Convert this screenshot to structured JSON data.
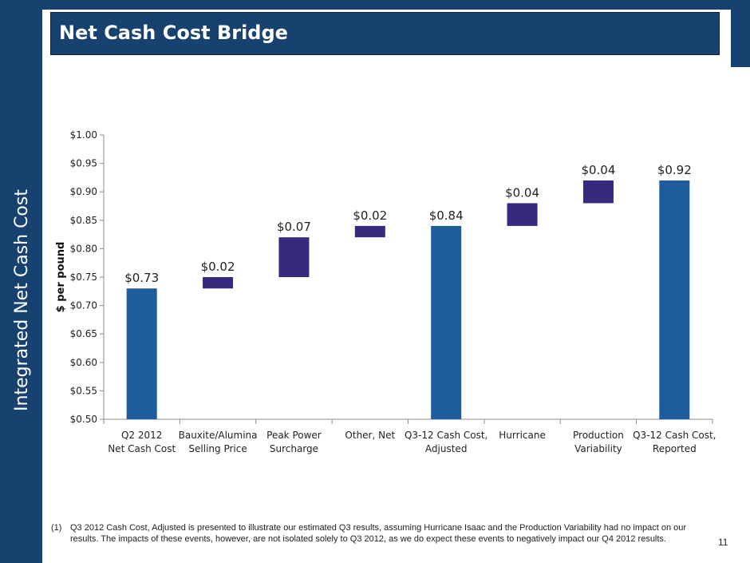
{
  "sidebar": {
    "label": "Integrated Net Cash Cost"
  },
  "header": {
    "title": "Net Cash Cost Bridge"
  },
  "footnote": {
    "marker": "(1)",
    "text": "Q3 2012 Cash Cost, Adjusted is presented to illustrate our estimated Q3 results, assuming Hurricane Isaac and the Production Variability had no impact on our results. The impacts of these events, however, are not isolated solely to Q3 2012, as we do expect these events to negatively impact our Q4 2012 results."
  },
  "page_number": "11",
  "colors": {
    "total_bar": "#1f5c9e",
    "delta_bar": "#352a7d",
    "band": "#17426f"
  },
  "chart_data": {
    "type": "bar",
    "subtype": "waterfall",
    "title": "Net Cash Cost Bridge",
    "xlabel": "",
    "ylabel": "$ per pound",
    "ylim": [
      0.5,
      1.0
    ],
    "ytick_step": 0.05,
    "ytick_labels": [
      "$0.50",
      "$0.55",
      "$0.60",
      "$0.65",
      "$0.70",
      "$0.75",
      "$0.80",
      "$0.85",
      "$0.90",
      "$0.95",
      "$1.00"
    ],
    "grid": false,
    "categories": [
      [
        "Q2 2012",
        "Net Cash Cost"
      ],
      [
        "Bauxite/Alumina",
        "Selling Price"
      ],
      [
        "Peak Power",
        "Surcharge"
      ],
      [
        "Other, Net"
      ],
      [
        "Q3-12 Cash Cost,",
        "Adjusted"
      ],
      [
        "Hurricane"
      ],
      [
        "Production",
        "Variability"
      ],
      [
        "Q3-12 Cash Cost,",
        "Reported"
      ]
    ],
    "bars": [
      {
        "kind": "total",
        "low": 0.5,
        "high": 0.73,
        "label": "$0.73"
      },
      {
        "kind": "delta",
        "low": 0.73,
        "high": 0.75,
        "label": "$0.02"
      },
      {
        "kind": "delta",
        "low": 0.75,
        "high": 0.82,
        "label": "$0.07"
      },
      {
        "kind": "delta",
        "low": 0.82,
        "high": 0.84,
        "label": "$0.02"
      },
      {
        "kind": "total",
        "low": 0.5,
        "high": 0.84,
        "label": "$0.84"
      },
      {
        "kind": "delta",
        "low": 0.84,
        "high": 0.88,
        "label": "$0.04"
      },
      {
        "kind": "delta",
        "low": 0.88,
        "high": 0.92,
        "label": "$0.04"
      },
      {
        "kind": "total",
        "low": 0.5,
        "high": 0.92,
        "label": "$0.92"
      }
    ]
  }
}
